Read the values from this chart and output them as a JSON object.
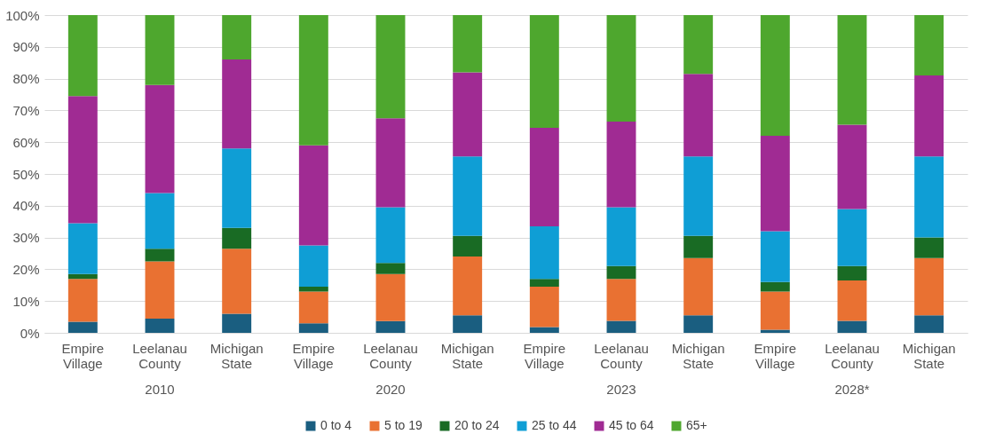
{
  "chart_data": {
    "type": "bar",
    "stacked": true,
    "categories": [
      "Empire Village",
      "Leelanau County",
      "Michigan State",
      "Empire Village",
      "Leelanau County",
      "Michigan State",
      "Empire Village",
      "Leelanau County",
      "Michigan State",
      "Empire Village",
      "Leelanau County",
      "Michigan State"
    ],
    "annotations": [
      "2010",
      "2020",
      "2023",
      "2028*"
    ],
    "series": [
      {
        "name": "0 to 4",
        "color": "#1a5e80",
        "values": [
          3.5,
          4.5,
          6,
          3,
          3.7,
          5.5,
          1.8,
          3.8,
          5.5,
          1,
          3.8,
          5.5
        ]
      },
      {
        "name": "5 to 19",
        "color": "#e97132",
        "values": [
          13.5,
          18,
          20.5,
          10,
          14.8,
          18.5,
          12.7,
          13.2,
          18,
          12,
          12.7,
          18
        ]
      },
      {
        "name": "20 to 24",
        "color": "#196b24",
        "values": [
          1.5,
          4,
          6.5,
          1.5,
          3.5,
          6.5,
          2.5,
          4,
          7,
          3,
          4.5,
          6.5
        ]
      },
      {
        "name": "25 to 44",
        "color": "#0f9ed5",
        "values": [
          16,
          17.5,
          25,
          13,
          17.5,
          25,
          16.5,
          18.5,
          25,
          16,
          18,
          25.5
        ]
      },
      {
        "name": "45 to 64",
        "color": "#a02b93",
        "values": [
          40,
          34,
          28,
          31.5,
          28,
          26.5,
          31,
          27,
          26,
          30,
          26.5,
          25.5
        ]
      },
      {
        "name": "65+",
        "color": "#4ea72e",
        "values": [
          25.5,
          22,
          14,
          41,
          32.5,
          18,
          35.5,
          33.5,
          18.5,
          38,
          34.5,
          19
        ]
      }
    ],
    "ylim": [
      0,
      100
    ],
    "yticks": [
      {
        "value": 0,
        "label": "0%"
      },
      {
        "value": 10,
        "label": "10%"
      },
      {
        "value": 20,
        "label": "20%"
      },
      {
        "value": 30,
        "label": "30%"
      },
      {
        "value": 40,
        "label": "40%"
      },
      {
        "value": 50,
        "label": "50%"
      },
      {
        "value": 60,
        "label": "60%"
      },
      {
        "value": 70,
        "label": "70%"
      },
      {
        "value": 80,
        "label": "80%"
      },
      {
        "value": 90,
        "label": "90%"
      },
      {
        "value": 100,
        "label": "100%"
      }
    ],
    "grid": "y",
    "legend": "bottom"
  }
}
